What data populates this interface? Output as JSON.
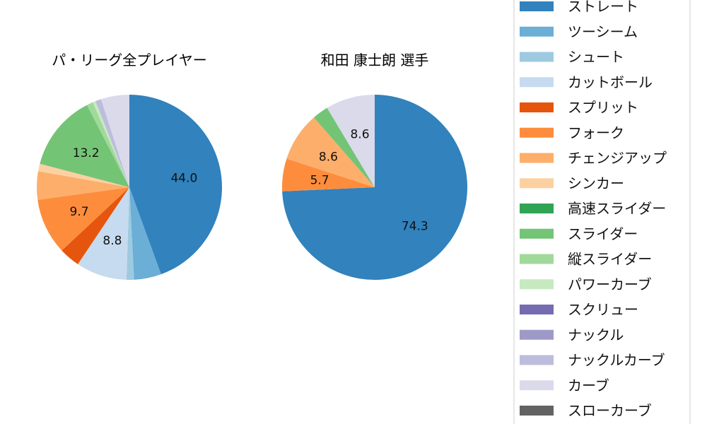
{
  "chart_data": [
    {
      "type": "pie",
      "title": "パ・リーグ全プレイヤー",
      "start": "top",
      "direction": "clockwise",
      "slices": [
        {
          "name": "ストレート",
          "value": 44.0,
          "label": "44.0"
        },
        {
          "name": "ツーシーム",
          "value": 4.7
        },
        {
          "name": "シュート",
          "value": 1.3
        },
        {
          "name": "カットボール",
          "value": 8.8,
          "label": "8.8"
        },
        {
          "name": "スプリット",
          "value": 3.6
        },
        {
          "name": "フォーク",
          "value": 9.7,
          "label": "9.7"
        },
        {
          "name": "チェンジアップ",
          "value": 4.9
        },
        {
          "name": "シンカー",
          "value": 1.3
        },
        {
          "name": "スライダー",
          "value": 13.2,
          "label": "13.2"
        },
        {
          "name": "縦スライダー",
          "value": 1.1
        },
        {
          "name": "パワーカーブ",
          "value": 0.5
        },
        {
          "name": "ナックルカーブ",
          "value": 1.0
        },
        {
          "name": "カーブ",
          "value": 4.9
        }
      ]
    },
    {
      "type": "pie",
      "title": "和田 康士朗  選手",
      "start": "top",
      "direction": "clockwise",
      "slices": [
        {
          "name": "ストレート",
          "value": 74.3,
          "label": "74.3"
        },
        {
          "name": "フォーク",
          "value": 5.7,
          "label": "5.7"
        },
        {
          "name": "チェンジアップ",
          "value": 8.6,
          "label": "8.6"
        },
        {
          "name": "スライダー",
          "value": 2.8
        },
        {
          "name": "カーブ",
          "value": 8.6,
          "label": "8.6"
        }
      ]
    }
  ],
  "legend": {
    "placement": "right",
    "items": [
      {
        "name": "ストレート",
        "color": "#3182bd"
      },
      {
        "name": "ツーシーム",
        "color": "#6baed6"
      },
      {
        "name": "シュート",
        "color": "#9ecae1"
      },
      {
        "name": "カットボール",
        "color": "#c6dbef"
      },
      {
        "name": "スプリット",
        "color": "#e6550d"
      },
      {
        "name": "フォーク",
        "color": "#fd8d3c"
      },
      {
        "name": "チェンジアップ",
        "color": "#fdae6b"
      },
      {
        "name": "シンカー",
        "color": "#fdd0a2"
      },
      {
        "name": "高速スライダー",
        "color": "#31a354"
      },
      {
        "name": "スライダー",
        "color": "#74c476"
      },
      {
        "name": "縦スライダー",
        "color": "#a1d99b"
      },
      {
        "name": "パワーカーブ",
        "color": "#c7e9c0"
      },
      {
        "name": "スクリュー",
        "color": "#756bb1"
      },
      {
        "name": "ナックル",
        "color": "#9e9ac8"
      },
      {
        "name": "ナックルカーブ",
        "color": "#bcbddc"
      },
      {
        "name": "カーブ",
        "color": "#dadaeb"
      },
      {
        "name": "スローカーブ",
        "color": "#636363"
      }
    ]
  }
}
